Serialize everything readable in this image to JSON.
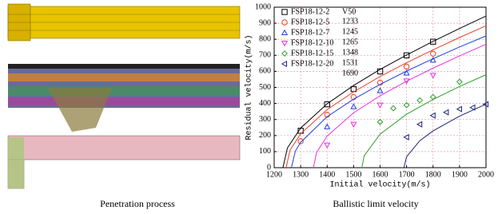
{
  "captions": [
    "Penetration process",
    "Ballistic limit velocity"
  ],
  "chart_data": {
    "type": "scatter",
    "x_label": "Initial velocity(m/s)",
    "y_label": "Residual velocity(m/s)",
    "xlim": [
      1200,
      2000
    ],
    "xticks": [
      1200,
      1300,
      1400,
      1500,
      1600,
      1700,
      1800,
      1900,
      2000
    ],
    "ylim": [
      0,
      1000
    ],
    "yticks": [
      0,
      100,
      200,
      300,
      400,
      500,
      600,
      700,
      800,
      900,
      1000
    ],
    "grid": true,
    "legend_title": "V50",
    "series": [
      {
        "name": "FSP18-12-2",
        "color": "#000000",
        "marker": "square",
        "v50": 1233,
        "x": [
          1300,
          1400,
          1500,
          1600,
          1700,
          1800
        ],
        "values": [
          230,
          395,
          490,
          600,
          700,
          785
        ],
        "fit_x": [
          1233,
          1250,
          1300,
          1400,
          1500,
          1600,
          1700,
          1800,
          1900,
          2000
        ],
        "fit_y": [
          0,
          123,
          247,
          398,
          512,
          612,
          702,
          787,
          867,
          945
        ]
      },
      {
        "name": "FSP18-12-5",
        "color": "#e8402a",
        "marker": "circle",
        "v50": 1245,
        "x": [
          1300,
          1400,
          1500,
          1600,
          1700,
          1800
        ],
        "values": [
          165,
          330,
          440,
          530,
          630,
          710
        ],
        "fit_x": [
          1245,
          1260,
          1300,
          1400,
          1500,
          1600,
          1700,
          1800,
          1900,
          2000
        ],
        "fit_y": [
          0,
          110,
          211,
          362,
          472,
          568,
          654,
          734,
          811,
          884
        ]
      },
      {
        "name": "FSP18-12-7",
        "color": "#1f3fe0",
        "marker": "triangle-up",
        "v50": 1265,
        "x": [
          1400,
          1500,
          1600,
          1700,
          1800
        ],
        "values": [
          255,
          380,
          480,
          590,
          670
        ],
        "fit_x": [
          1265,
          1280,
          1300,
          1400,
          1500,
          1600,
          1700,
          1800,
          1900,
          2000
        ],
        "fit_y": [
          0,
          103,
          158,
          318,
          427,
          519,
          602,
          679,
          752,
          821
        ]
      },
      {
        "name": "FSP18-12-10",
        "color": "#e830e0",
        "marker": "triangle-down",
        "v50": 1348,
        "x": [
          1400,
          1500,
          1600,
          1700,
          1800
        ],
        "values": [
          140,
          270,
          390,
          540,
          575
        ],
        "fit_x": [
          1348,
          1360,
          1400,
          1500,
          1600,
          1700,
          1800,
          1900,
          2000
        ],
        "fit_y": [
          0,
          94,
          197,
          342,
          448,
          539,
          620,
          696,
          769
        ]
      },
      {
        "name": "FSP18-12-15",
        "color": "#2ca02c",
        "marker": "diamond",
        "v50": 1531,
        "x": [
          1600,
          1650,
          1700,
          1750,
          1800,
          1900
        ],
        "values": [
          285,
          370,
          390,
          420,
          440,
          535
        ],
        "fit_x": [
          1531,
          1540,
          1600,
          1700,
          1800,
          1900,
          2000
        ],
        "fit_y": [
          0,
          75,
          209,
          333,
          425,
          506,
          579
        ]
      },
      {
        "name": "FSP18-12-20",
        "color": "#1a237e",
        "marker": "triangle-left",
        "v50": 1690,
        "x": [
          1700,
          1750,
          1800,
          1850,
          1900,
          1950,
          2000
        ],
        "values": [
          190,
          270,
          325,
          345,
          365,
          375,
          395
        ],
        "fit_x": [
          1690,
          1700,
          1750,
          1800,
          1900,
          2000
        ],
        "fit_y": [
          0,
          68,
          168,
          229,
          321,
          396
        ]
      }
    ]
  }
}
